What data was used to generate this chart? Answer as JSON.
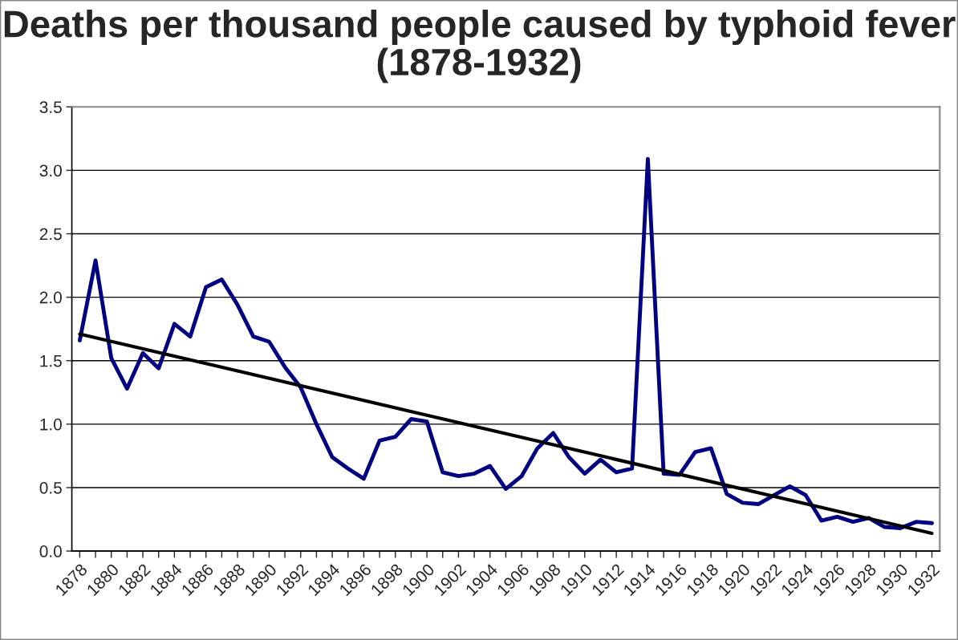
{
  "chart_data": {
    "type": "line",
    "title": "Deaths per thousand people caused by typhoid fever (1878-1932)",
    "x": [
      1878,
      1879,
      1880,
      1881,
      1882,
      1883,
      1884,
      1885,
      1886,
      1887,
      1888,
      1889,
      1890,
      1891,
      1892,
      1893,
      1894,
      1895,
      1896,
      1897,
      1898,
      1899,
      1900,
      1901,
      1902,
      1903,
      1904,
      1905,
      1906,
      1907,
      1908,
      1909,
      1910,
      1911,
      1912,
      1913,
      1914,
      1915,
      1916,
      1917,
      1918,
      1919,
      1920,
      1921,
      1922,
      1923,
      1924,
      1925,
      1926,
      1927,
      1928,
      1929,
      1930,
      1931,
      1932
    ],
    "series": [
      {
        "color": "#000080",
        "values": [
          1.66,
          2.29,
          1.52,
          1.28,
          1.56,
          1.44,
          1.79,
          1.69,
          2.08,
          2.14,
          1.94,
          1.69,
          1.65,
          1.45,
          1.29,
          1.0,
          0.74,
          0.65,
          0.57,
          0.87,
          0.9,
          1.04,
          1.02,
          0.62,
          0.59,
          0.61,
          0.67,
          0.49,
          0.59,
          0.81,
          0.93,
          0.74,
          0.61,
          0.72,
          0.62,
          0.65,
          3.09,
          0.61,
          0.6,
          0.78,
          0.81,
          0.45,
          0.38,
          0.37,
          0.44,
          0.51,
          0.44,
          0.24,
          0.27,
          0.23,
          0.26,
          0.19,
          0.18,
          0.23,
          0.22
        ]
      },
      {
        "type": "line",
        "color": "#000000",
        "x": [
          1878,
          1932
        ],
        "values": [
          1.71,
          0.14
        ]
      }
    ],
    "xlim": [
      1877.5,
      1932.5
    ],
    "xticks": [
      1878,
      {
        "value": 1879,
        "label": null
      },
      1880,
      {
        "value": 1881,
        "label": null
      },
      1882,
      {
        "value": 1883,
        "label": null
      },
      1884,
      {
        "value": 1885,
        "label": null
      },
      1886,
      {
        "value": 1887,
        "label": null
      },
      1888,
      {
        "value": 1889,
        "label": null
      },
      1890,
      {
        "value": 1891,
        "label": null
      },
      1892,
      {
        "value": 1893,
        "label": null
      },
      1894,
      {
        "value": 1895,
        "label": null
      },
      1896,
      {
        "value": 1897,
        "label": null
      },
      1898,
      {
        "value": 1899,
        "label": null
      },
      1900,
      {
        "value": 1901,
        "label": null
      },
      1902,
      {
        "value": 1903,
        "label": null
      },
      1904,
      {
        "value": 1905,
        "label": null
      },
      1906,
      {
        "value": 1907,
        "label": null
      },
      1908,
      {
        "value": 1909,
        "label": null
      },
      1910,
      {
        "value": 1911,
        "label": null
      },
      1912,
      {
        "value": 1913,
        "label": null
      },
      1914,
      {
        "value": 1915,
        "label": null
      },
      1916,
      {
        "value": 1917,
        "label": null
      },
      1918,
      {
        "value": 1919,
        "label": null
      },
      1920,
      {
        "value": 1921,
        "label": null
      },
      1922,
      {
        "value": 1923,
        "label": null
      },
      1924,
      {
        "value": 1925,
        "label": null
      },
      1926,
      {
        "value": 1927,
        "label": null
      },
      1928,
      {
        "value": 1929,
        "label": null
      },
      1930,
      {
        "value": 1931,
        "label": null
      },
      1932
    ],
    "ylim": [
      0,
      3.5
    ],
    "yticks": [
      {
        "value": 0,
        "label": "0.0"
      },
      {
        "value": 0.5,
        "label": "0.5"
      },
      {
        "value": 1,
        "label": "1.0"
      },
      {
        "value": 1.5,
        "label": "1.5"
      },
      {
        "value": 2,
        "label": "2.0"
      },
      {
        "value": 2.5,
        "label": "2.5"
      },
      {
        "value": 3,
        "label": "3.0"
      },
      {
        "value": 3.5,
        "label": "3.5"
      }
    ],
    "grid": "y",
    "marker": "none",
    "line_style": "solid"
  }
}
